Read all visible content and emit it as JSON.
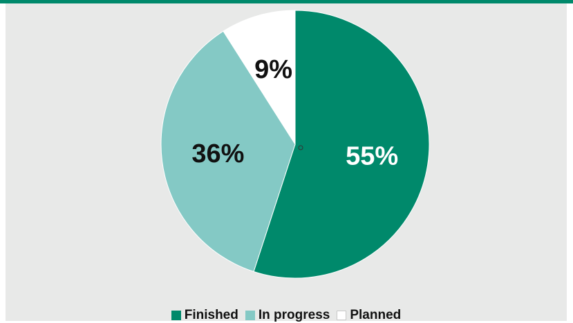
{
  "colors": {
    "background": "#e8e9e8",
    "top_bar": "#00896b"
  },
  "chart_data": {
    "type": "pie",
    "start_angle_deg": 0,
    "direction": "clockwise",
    "slices": [
      {
        "label": "Finished",
        "value": 55,
        "display": "55%",
        "color": "#00896b",
        "label_color": "#ffffff"
      },
      {
        "label": "In progress",
        "value": 36,
        "display": "36%",
        "color": "#84c9c5",
        "label_color": "#111111"
      },
      {
        "label": "Planned",
        "value": 9,
        "display": "9%",
        "color": "#ffffff",
        "label_color": "#111111"
      }
    ],
    "legend": {
      "position": "bottom",
      "entries": [
        "Finished",
        "In progress",
        "Planned"
      ]
    }
  }
}
